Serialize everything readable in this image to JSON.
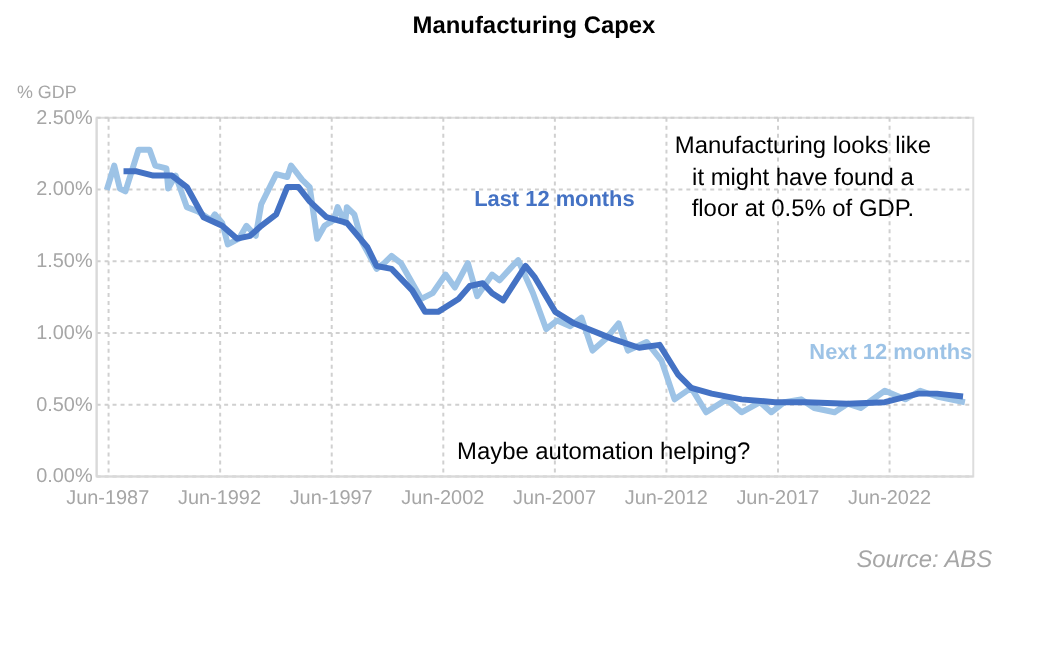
{
  "chart_data": {
    "type": "line",
    "title": "Manufacturing Capex",
    "ylabel": "% GDP",
    "annotations": [
      "Manufacturing looks like it might have found a floor at 0.5% of GDP.",
      "Maybe automation helping?",
      "Source: ABS"
    ],
    "xlim": [
      "1986-12",
      "2026-03"
    ],
    "ylim": [
      0,
      2.5
    ],
    "xticks": [
      {
        "value": "1987-06",
        "label": "Jun-1987"
      },
      {
        "value": "1992-06",
        "label": "Jun-1992"
      },
      {
        "value": "1997-06",
        "label": "Jun-1997"
      },
      {
        "value": "2002-06",
        "label": "Jun-2002"
      },
      {
        "value": "2007-06",
        "label": "Jun-2007"
      },
      {
        "value": "2012-06",
        "label": "Jun-2012"
      },
      {
        "value": "2017-06",
        "label": "Jun-2017"
      },
      {
        "value": "2022-06",
        "label": "Jun-2022"
      }
    ],
    "yticks": [
      {
        "value": 0,
        "label": "0.00%"
      },
      {
        "value": 0.5,
        "label": "0.50%"
      },
      {
        "value": 1,
        "label": "1.00%"
      },
      {
        "value": 1.5,
        "label": "1.50%"
      },
      {
        "value": 2,
        "label": "2.00%"
      },
      {
        "value": 2.5,
        "label": "2.50%"
      }
    ],
    "grid": true,
    "line_style": "solid",
    "marker": "none",
    "series": [
      {
        "name": "Next 12 months",
        "color": "#9dc3e6",
        "x": [
          "1987-06",
          "1987-10",
          "1988-01",
          "1988-04",
          "1988-11",
          "1989-05",
          "1989-08",
          "1990-02",
          "1990-03",
          "1990-07",
          "1991-01",
          "1991-07",
          "1992-02",
          "1992-04",
          "1992-08",
          "1992-11",
          "1993-05",
          "1993-09",
          "1994-02",
          "1994-05",
          "1995-01",
          "1995-07",
          "1995-09",
          "1996-03",
          "1996-07",
          "1996-11",
          "1997-03",
          "1997-08",
          "1997-10",
          "1998-02",
          "1998-03",
          "1998-07",
          "1998-11",
          "1999-07",
          "1999-11",
          "2000-03",
          "2000-08",
          "2001-07",
          "2002-01",
          "2002-08",
          "2003-01",
          "2003-08",
          "2004-01",
          "2004-09",
          "2005-01",
          "2005-08",
          "2005-11",
          "2006-07",
          "2007-02",
          "2007-08",
          "2008-03",
          "2008-09",
          "2009-03",
          "2009-10",
          "2010-05",
          "2010-10",
          "2011-08",
          "2012-04",
          "2012-11",
          "2013-08",
          "2014-04",
          "2015-03",
          "2015-11",
          "2016-09",
          "2017-03",
          "2017-10",
          "2018-07",
          "2019-02",
          "2020-01",
          "2020-08",
          "2021-03",
          "2022-04",
          "2023-03",
          "2023-11",
          "2024-08",
          "2025-11"
        ],
        "values": [
          1.99,
          2.16,
          2.0,
          1.98,
          2.27,
          2.27,
          2.16,
          2.14,
          2.0,
          2.09,
          1.87,
          1.84,
          1.78,
          1.82,
          1.76,
          1.61,
          1.65,
          1.74,
          1.67,
          1.89,
          2.1,
          2.08,
          2.16,
          2.06,
          2.01,
          1.65,
          1.74,
          1.78,
          1.87,
          1.76,
          1.87,
          1.82,
          1.63,
          1.44,
          1.48,
          1.53,
          1.48,
          1.23,
          1.27,
          1.4,
          1.31,
          1.48,
          1.25,
          1.4,
          1.36,
          1.46,
          1.5,
          1.27,
          1.02,
          1.08,
          1.04,
          1.1,
          0.87,
          0.95,
          1.06,
          0.87,
          0.93,
          0.8,
          0.53,
          0.61,
          0.44,
          0.53,
          0.44,
          0.51,
          0.44,
          0.51,
          0.53,
          0.47,
          0.44,
          0.5,
          0.47,
          0.59,
          0.53,
          0.59,
          0.55,
          0.51
        ]
      },
      {
        "name": "Last 12 months",
        "color": "#4472c4",
        "x": [
          "1988-03",
          "1988-10",
          "1989-07",
          "1990-05",
          "1991-01",
          "1991-10",
          "1992-08",
          "1993-04",
          "1993-11",
          "1994-05",
          "1995-01",
          "1995-07",
          "1996-01",
          "1996-07",
          "1997-04",
          "1998-03",
          "1999-02",
          "1999-07",
          "2000-03",
          "2001-02",
          "2001-09",
          "2002-04",
          "2003-03",
          "2003-09",
          "2004-04",
          "2004-09",
          "2005-03",
          "2006-03",
          "2006-08",
          "2007-07",
          "2008-05",
          "2010-02",
          "2011-04",
          "2012-03",
          "2013-01",
          "2013-08",
          "2014-07",
          "2015-11",
          "2017-05",
          "2018-10",
          "2020-08",
          "2022-04",
          "2023-10",
          "2024-08",
          "2025-10"
        ],
        "values": [
          2.12,
          2.12,
          2.09,
          2.09,
          2.01,
          1.8,
          1.74,
          1.65,
          1.67,
          1.74,
          1.82,
          2.01,
          2.01,
          1.91,
          1.8,
          1.76,
          1.59,
          1.46,
          1.44,
          1.29,
          1.14,
          1.14,
          1.23,
          1.32,
          1.34,
          1.27,
          1.22,
          1.46,
          1.38,
          1.14,
          1.06,
          0.95,
          0.89,
          0.91,
          0.7,
          0.61,
          0.57,
          0.53,
          0.51,
          0.51,
          0.5,
          0.51,
          0.57,
          0.57,
          0.55
        ]
      }
    ]
  }
}
